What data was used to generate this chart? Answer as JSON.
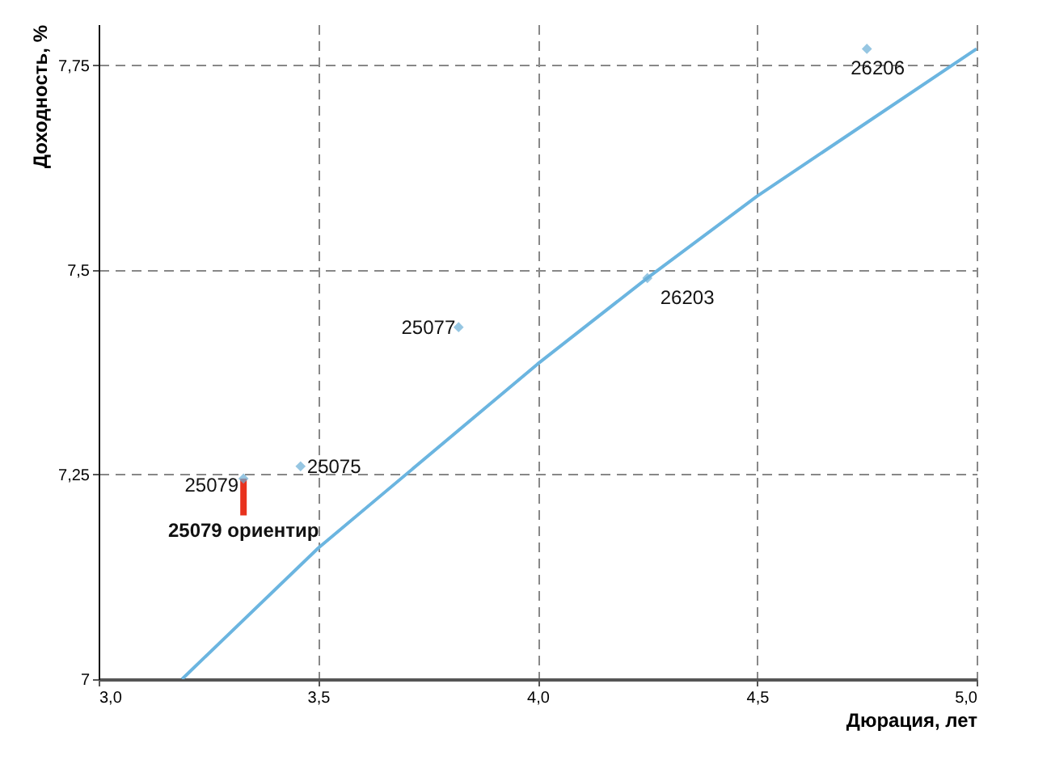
{
  "chart_data": {
    "type": "scatter",
    "xlabel": "Дюрация, лет",
    "ylabel": "Доходность, %",
    "xlim": [
      3,
      5
    ],
    "ylim": [
      7,
      7.8
    ],
    "xticks": [
      {
        "value": 3,
        "label": "3,0"
      },
      {
        "value": 3.5,
        "label": "3,5"
      },
      {
        "value": 4,
        "label": "4,0"
      },
      {
        "value": 4.5,
        "label": "4,5"
      },
      {
        "value": 5,
        "label": "5,0"
      }
    ],
    "yticks": [
      7,
      {
        "value": 7.25,
        "label": "7,25"
      },
      {
        "value": 7.5,
        "label": "7,5"
      },
      {
        "value": 7.75,
        "label": "7,75"
      }
    ],
    "grid": true,
    "series": [
      {
        "type": "line",
        "marker": "none",
        "color": "#6bb5e0",
        "x": [
          3.19,
          3.5,
          4.0,
          4.25,
          4.5,
          4.75,
          5.0
        ],
        "values": [
          7.0,
          7.16,
          7.385,
          7.49,
          7.59,
          7.68,
          7.77
        ]
      },
      {
        "marker": "diamond",
        "color": "#6aaed6",
        "x": [
          3.33,
          3.46,
          3.82,
          4.25,
          4.75
        ],
        "values": [
          7.245,
          7.26,
          7.43,
          7.49,
          7.77
        ]
      },
      {
        "type": "line",
        "marker": "none",
        "name": "25079 ориентир",
        "color": "#e8321e",
        "x": [
          3.33,
          3.33
        ],
        "values": [
          7.245,
          7.2
        ]
      }
    ],
    "annotations": [
      {
        "text": "25079",
        "x": 3.33,
        "y": 7.245
      },
      {
        "text": "25075",
        "x": 3.46,
        "y": 7.26
      },
      {
        "text": "25077",
        "x": 3.82,
        "y": 7.43
      },
      {
        "text": "26203",
        "x": 4.25,
        "y": 7.49
      },
      {
        "text": "26206",
        "x": 4.75,
        "y": 7.77
      }
    ]
  }
}
